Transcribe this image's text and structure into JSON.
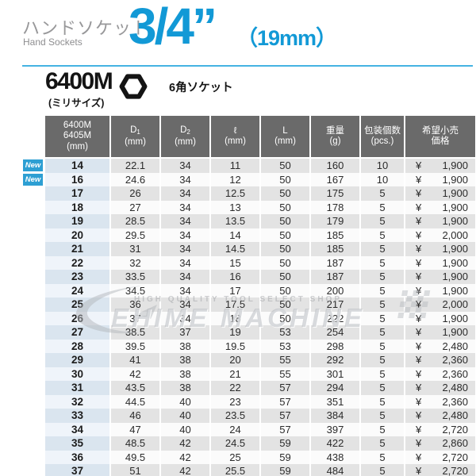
{
  "header": {
    "title_jp": "ハンドソケット",
    "title_en": "Hand Sockets",
    "size_inch": "3/4”",
    "size_mm": "（19mm）",
    "accent_color": "#1299d6"
  },
  "product": {
    "model": "6400M",
    "model_note": "(ミリサイズ)",
    "type_label": "6角ソケット"
  },
  "watermark": {
    "line1": "HIGH QUALITY TOOL SELECT SHOP",
    "line2": "EHIME MACHINE"
  },
  "table": {
    "new_badge_label": "New",
    "currency": "¥",
    "header_bg": "#6a6a6a",
    "headers": [
      {
        "id": "model",
        "lines": [
          "6400M",
          "6405M",
          "(mm)"
        ]
      },
      {
        "id": "d1",
        "main": "D",
        "subscript": "1",
        "unit": "(mm)"
      },
      {
        "id": "d2",
        "main": "D",
        "subscript": "2",
        "unit": "(mm)"
      },
      {
        "id": "l-small",
        "main": "ℓ",
        "unit": "(mm)"
      },
      {
        "id": "l-large",
        "main": "L",
        "unit": "(mm)"
      },
      {
        "id": "weight",
        "main": "重量",
        "unit": "(g)"
      },
      {
        "id": "pcs",
        "main": "包装個数",
        "unit": "(pcs.)"
      },
      {
        "id": "price",
        "lines": [
          "希望小売",
          "価格"
        ]
      }
    ],
    "rows": [
      {
        "size": "14",
        "d1": "22.1",
        "d2": "34",
        "l": "11",
        "L": "50",
        "weight": "160",
        "pcs": "10",
        "price": "1,900",
        "is_new": true
      },
      {
        "size": "16",
        "d1": "24.6",
        "d2": "34",
        "l": "12",
        "L": "50",
        "weight": "167",
        "pcs": "10",
        "price": "1,900",
        "is_new": true
      },
      {
        "size": "17",
        "d1": "26",
        "d2": "34",
        "l": "12.5",
        "L": "50",
        "weight": "175",
        "pcs": "5",
        "price": "1,900",
        "is_new": false
      },
      {
        "size": "18",
        "d1": "27",
        "d2": "34",
        "l": "13",
        "L": "50",
        "weight": "178",
        "pcs": "5",
        "price": "1,900",
        "is_new": false
      },
      {
        "size": "19",
        "d1": "28.5",
        "d2": "34",
        "l": "13.5",
        "L": "50",
        "weight": "179",
        "pcs": "5",
        "price": "1,900",
        "is_new": false
      },
      {
        "size": "20",
        "d1": "29.5",
        "d2": "34",
        "l": "14",
        "L": "50",
        "weight": "185",
        "pcs": "5",
        "price": "2,000",
        "is_new": false
      },
      {
        "size": "21",
        "d1": "31",
        "d2": "34",
        "l": "14.5",
        "L": "50",
        "weight": "185",
        "pcs": "5",
        "price": "1,900",
        "is_new": false
      },
      {
        "size": "22",
        "d1": "32",
        "d2": "34",
        "l": "15",
        "L": "50",
        "weight": "187",
        "pcs": "5",
        "price": "1,900",
        "is_new": false
      },
      {
        "size": "23",
        "d1": "33.5",
        "d2": "34",
        "l": "16",
        "L": "50",
        "weight": "187",
        "pcs": "5",
        "price": "1,900",
        "is_new": false
      },
      {
        "size": "24",
        "d1": "34.5",
        "d2": "34",
        "l": "17",
        "L": "50",
        "weight": "200",
        "pcs": "5",
        "price": "1,900",
        "is_new": false
      },
      {
        "size": "25",
        "d1": "36",
        "d2": "34",
        "l": "17.5",
        "L": "50",
        "weight": "217",
        "pcs": "5",
        "price": "2,000",
        "is_new": false
      },
      {
        "size": "26",
        "d1": "37",
        "d2": "34",
        "l": "18",
        "L": "50",
        "weight": "222",
        "pcs": "5",
        "price": "1,900",
        "is_new": false
      },
      {
        "size": "27",
        "d1": "38.5",
        "d2": "37",
        "l": "19",
        "L": "53",
        "weight": "254",
        "pcs": "5",
        "price": "1,900",
        "is_new": false
      },
      {
        "size": "28",
        "d1": "39.5",
        "d2": "38",
        "l": "19.5",
        "L": "53",
        "weight": "298",
        "pcs": "5",
        "price": "2,480",
        "is_new": false
      },
      {
        "size": "29",
        "d1": "41",
        "d2": "38",
        "l": "20",
        "L": "55",
        "weight": "292",
        "pcs": "5",
        "price": "2,360",
        "is_new": false
      },
      {
        "size": "30",
        "d1": "42",
        "d2": "38",
        "l": "21",
        "L": "55",
        "weight": "301",
        "pcs": "5",
        "price": "2,360",
        "is_new": false
      },
      {
        "size": "31",
        "d1": "43.5",
        "d2": "38",
        "l": "22",
        "L": "57",
        "weight": "294",
        "pcs": "5",
        "price": "2,480",
        "is_new": false
      },
      {
        "size": "32",
        "d1": "44.5",
        "d2": "40",
        "l": "23",
        "L": "57",
        "weight": "351",
        "pcs": "5",
        "price": "2,360",
        "is_new": false
      },
      {
        "size": "33",
        "d1": "46",
        "d2": "40",
        "l": "23.5",
        "L": "57",
        "weight": "384",
        "pcs": "5",
        "price": "2,480",
        "is_new": false
      },
      {
        "size": "34",
        "d1": "47",
        "d2": "40",
        "l": "24",
        "L": "57",
        "weight": "397",
        "pcs": "5",
        "price": "2,720",
        "is_new": false
      },
      {
        "size": "35",
        "d1": "48.5",
        "d2": "42",
        "l": "24.5",
        "L": "59",
        "weight": "422",
        "pcs": "5",
        "price": "2,860",
        "is_new": false
      },
      {
        "size": "36",
        "d1": "49.5",
        "d2": "42",
        "l": "25",
        "L": "59",
        "weight": "438",
        "pcs": "5",
        "price": "2,720",
        "is_new": false
      },
      {
        "size": "37",
        "d1": "51",
        "d2": "42",
        "l": "25.5",
        "L": "59",
        "weight": "484",
        "pcs": "5",
        "price": "2,720",
        "is_new": false
      }
    ]
  }
}
